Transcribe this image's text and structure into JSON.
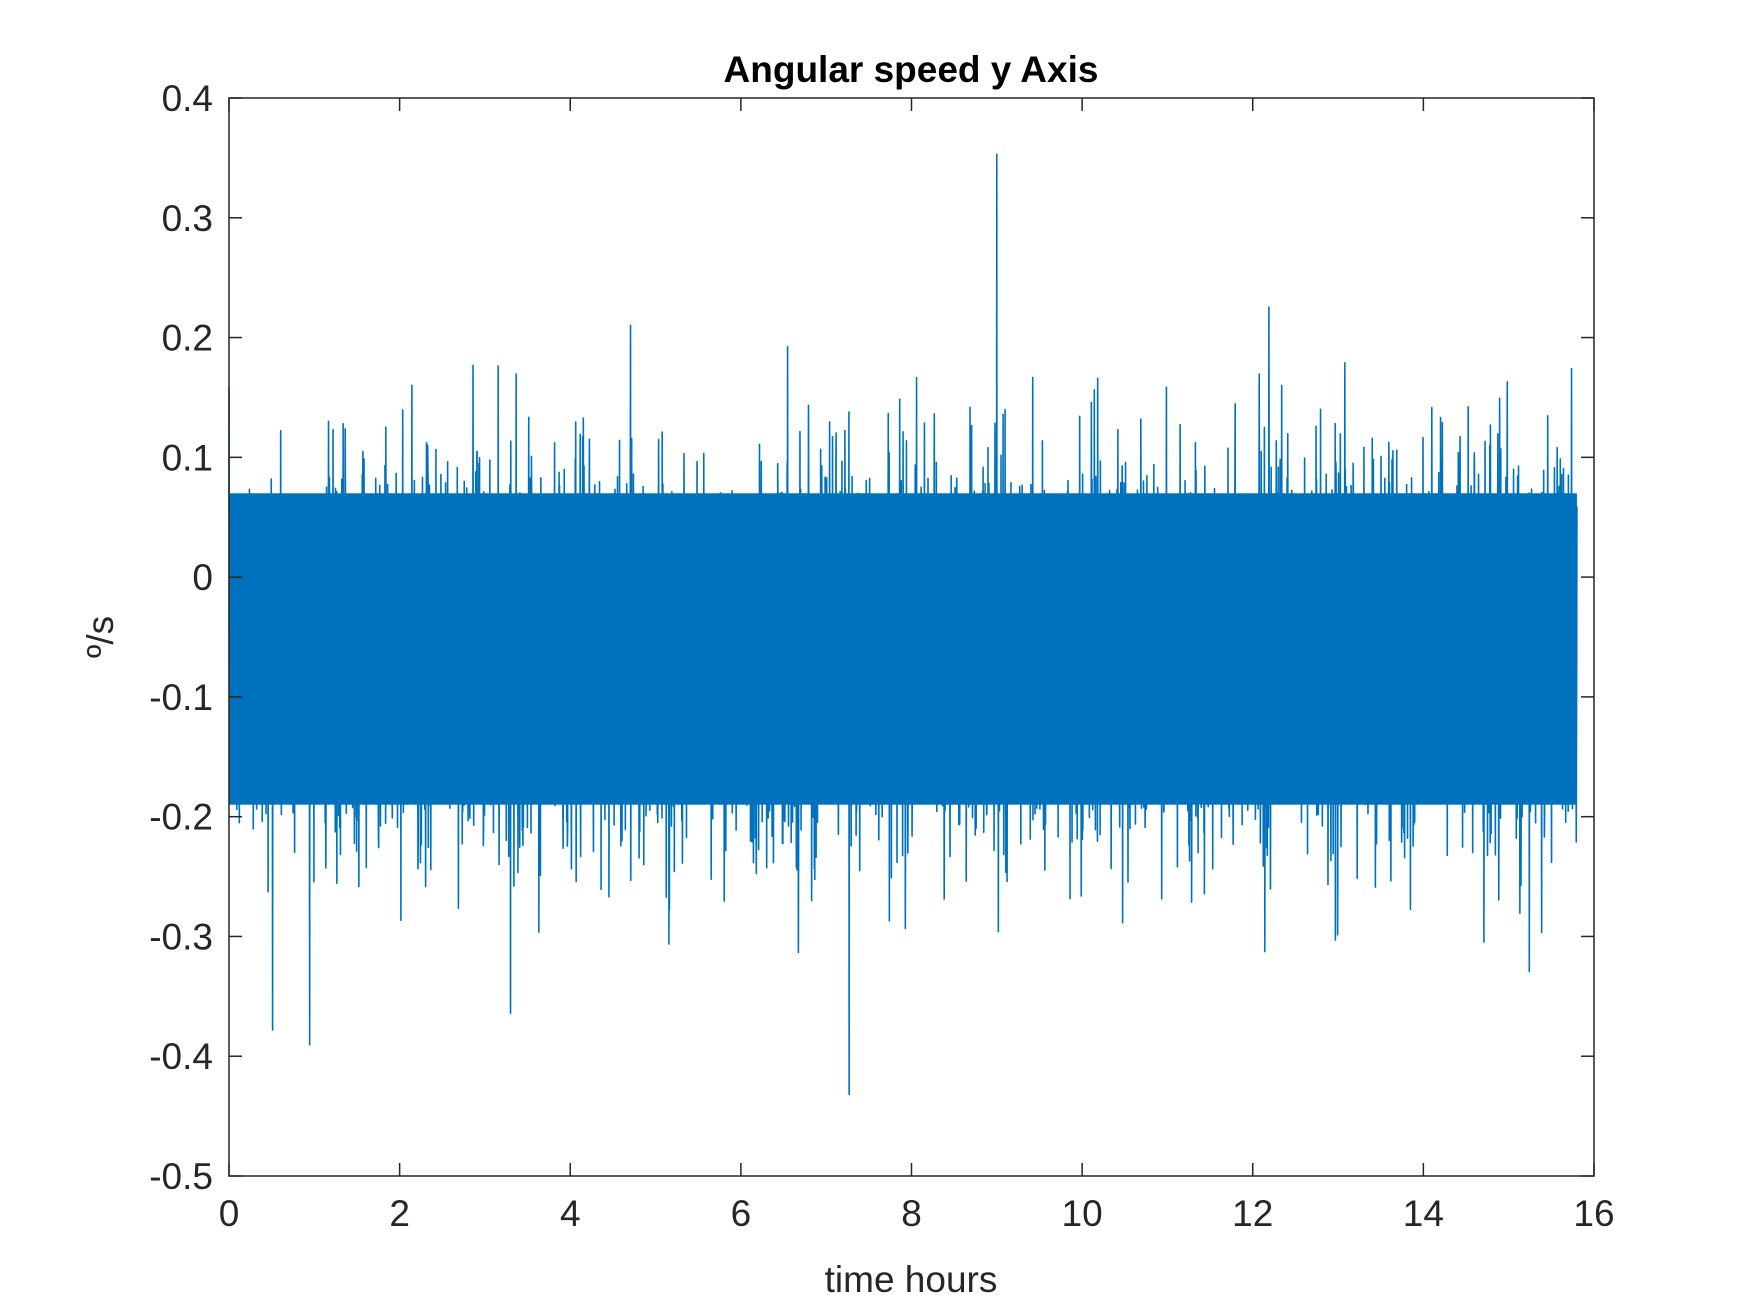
{
  "chart_data": {
    "type": "line",
    "title": "Angular speed y Axis",
    "xlabel": "time hours",
    "ylabel": "º/s",
    "xlim": [
      0,
      16
    ],
    "ylim": [
      -0.5,
      0.4
    ],
    "x_ticks": [
      "0",
      "2",
      "4",
      "6",
      "8",
      "10",
      "12",
      "14",
      "16"
    ],
    "y_ticks": [
      "-0.5",
      "-0.4",
      "-0.3",
      "-0.2",
      "-0.1",
      "0",
      "0.1",
      "0.2",
      "0.3",
      "0.4"
    ],
    "grid": false,
    "legend": "none",
    "series": [
      {
        "color": "#0072BD",
        "x_range": [
          0,
          15.8
        ],
        "mean": -0.06,
        "dense_band": [
          -0.19,
          0.07
        ],
        "observed_max": 0.353,
        "observed_max_at": 9.0,
        "observed_min": -0.432,
        "observed_min_at": 7.27
      }
    ]
  }
}
